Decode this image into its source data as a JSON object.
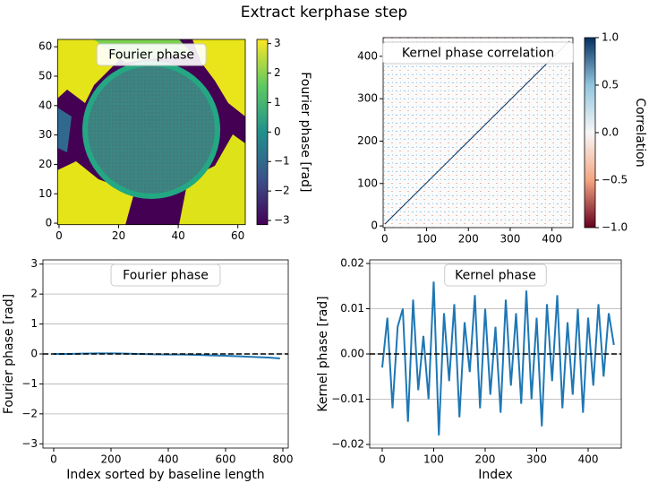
{
  "title": "Extract kerphase step",
  "chart_data": [
    {
      "type": "heatmap",
      "title": "Fourier phase",
      "xlim": [
        -0.5,
        62.5
      ],
      "xticks": [
        0,
        20,
        40,
        60
      ],
      "ylim": [
        -0.5,
        62.5
      ],
      "yticks": [
        0,
        10,
        20,
        30,
        40,
        50,
        60
      ],
      "colorbar_label": "Fourier phase [rad]",
      "colormap": "viridis",
      "clim": [
        -3.1416,
        3.1416
      ],
      "cticks": [
        {
          "value": -3,
          "label": "−3"
        },
        {
          "value": -2,
          "label": "−2"
        },
        {
          "value": -1,
          "label": "−1"
        },
        0,
        1,
        2,
        3
      ]
    },
    {
      "type": "heatmap",
      "title": "Kernel phase correlation",
      "xlim": [
        -4,
        450
      ],
      "xticks": [
        0,
        100,
        200,
        300,
        400
      ],
      "ylim": [
        -4,
        444
      ],
      "yticks": [
        0,
        100,
        200,
        300,
        400
      ],
      "colorbar_label": "Correlation",
      "colormap": "RdBu",
      "clim": [
        -1,
        1
      ],
      "cticks": [
        {
          "value": -1,
          "label": "−1.0"
        },
        {
          "value": -0.5,
          "label": "−0.5"
        },
        {
          "value": 0,
          "label": "0.0"
        },
        {
          "value": 0.5,
          "label": "0.5"
        },
        {
          "value": 1,
          "label": "1.0"
        }
      ]
    },
    {
      "type": "line",
      "title": "Fourier phase",
      "xlabel": "Index sorted by baseline length",
      "ylabel": "Fourier phase [rad]",
      "xlim": [
        -37.5,
        818.75
      ],
      "xticks": [
        0,
        200,
        400,
        600,
        800
      ],
      "ylim": [
        -3.1416,
        3.1416
      ],
      "yticks": [
        {
          "value": -3,
          "label": "−3"
        },
        {
          "value": -2,
          "label": "−2"
        },
        {
          "value": -1,
          "label": "−1"
        },
        0,
        1,
        2,
        3
      ],
      "grid": "y",
      "reference_line": 0,
      "series": [
        {
          "color": "#1f77b4",
          "x": [
            0,
            50,
            100,
            150,
            200,
            250,
            300,
            350,
            400,
            450,
            500,
            550,
            600,
            650,
            700,
            750,
            790
          ],
          "values": [
            0,
            0,
            0.01,
            0.02,
            0.02,
            0.01,
            0,
            -0.01,
            -0.02,
            -0.02,
            -0.03,
            -0.05,
            -0.06,
            -0.08,
            -0.1,
            -0.12,
            -0.15
          ]
        }
      ]
    },
    {
      "type": "line",
      "title": "Kernel phase",
      "xlabel": "Index",
      "ylabel": "Kernel phase [rad]",
      "xlim": [
        -24.3,
        464.3
      ],
      "xticks": [
        0,
        100,
        200,
        300,
        400
      ],
      "ylim": [
        -0.0208,
        0.0208
      ],
      "yticks": [
        {
          "value": -0.02,
          "label": "−0.02"
        },
        {
          "value": -0.01,
          "label": "−0.01"
        },
        {
          "value": 0,
          "label": "0.00"
        },
        {
          "value": 0.01,
          "label": "0.01"
        },
        {
          "value": 0.02,
          "label": "0.02"
        }
      ],
      "grid": "y",
      "reference_line": 0,
      "series": [
        {
          "color": "#1f77b4",
          "x": [
            0,
            10,
            20,
            30,
            40,
            50,
            60,
            70,
            80,
            90,
            100,
            110,
            120,
            130,
            140,
            150,
            160,
            170,
            180,
            190,
            200,
            210,
            220,
            230,
            240,
            250,
            260,
            270,
            280,
            290,
            300,
            310,
            320,
            330,
            340,
            350,
            360,
            370,
            380,
            390,
            400,
            410,
            420,
            430,
            440,
            450
          ],
          "values": [
            -0.003,
            0.008,
            -0.012,
            0.006,
            0.01,
            -0.015,
            0.012,
            -0.008,
            0.004,
            -0.01,
            0.016,
            -0.018,
            0.009,
            -0.006,
            0.011,
            -0.014,
            0.007,
            -0.004,
            0.013,
            -0.012,
            0.01,
            -0.009,
            0.006,
            -0.013,
            0.012,
            -0.007,
            0.009,
            -0.011,
            0.014,
            -0.01,
            0.008,
            -0.016,
            0.011,
            -0.006,
            0.013,
            -0.012,
            0.007,
            -0.009,
            0.01,
            -0.013,
            0.008,
            -0.007,
            0.011,
            -0.005,
            0.009,
            0.002
          ]
        }
      ]
    }
  ]
}
